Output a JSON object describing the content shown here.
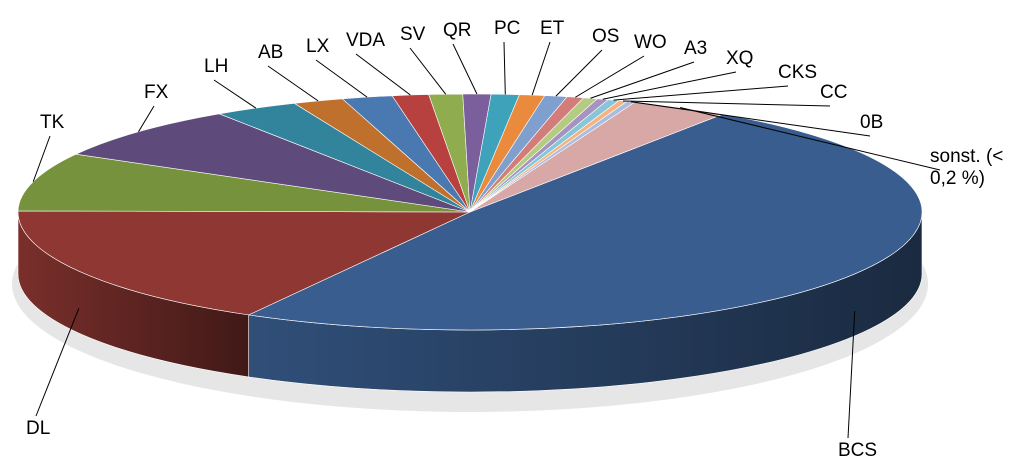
{
  "chart_data": {
    "type": "pie",
    "three_d": true,
    "categories": [
      "BCS",
      "DL",
      "TK",
      "FX",
      "LH",
      "AB",
      "LX",
      "VDA",
      "SV",
      "QR",
      "PC",
      "ET",
      "OS",
      "WO",
      "A3",
      "XQ",
      "CKS",
      "CC",
      "0B",
      "sonst. (< 0,2 %)"
    ],
    "values": [
      48.7,
      17,
      8,
      7.5,
      3,
      1.8,
      1.8,
      1.3,
      1.2,
      1,
      1,
      0.9,
      0.8,
      0.6,
      0.5,
      0.4,
      0.4,
      0.3,
      0.3,
      3.5
    ],
    "colors": [
      "#395d8e",
      "#8f3733",
      "#77923d",
      "#5e4a7b",
      "#31849b",
      "#c0702d",
      "#4a78b0",
      "#b7413e",
      "#8fad4f",
      "#7b5f9c",
      "#3fa2bb",
      "#e98a3c",
      "#7f9fce",
      "#d27d7a",
      "#b3cb83",
      "#a693c0",
      "#86c6d8",
      "#f7b27f",
      "#a9bde0",
      "#d8a8a6"
    ]
  }
}
